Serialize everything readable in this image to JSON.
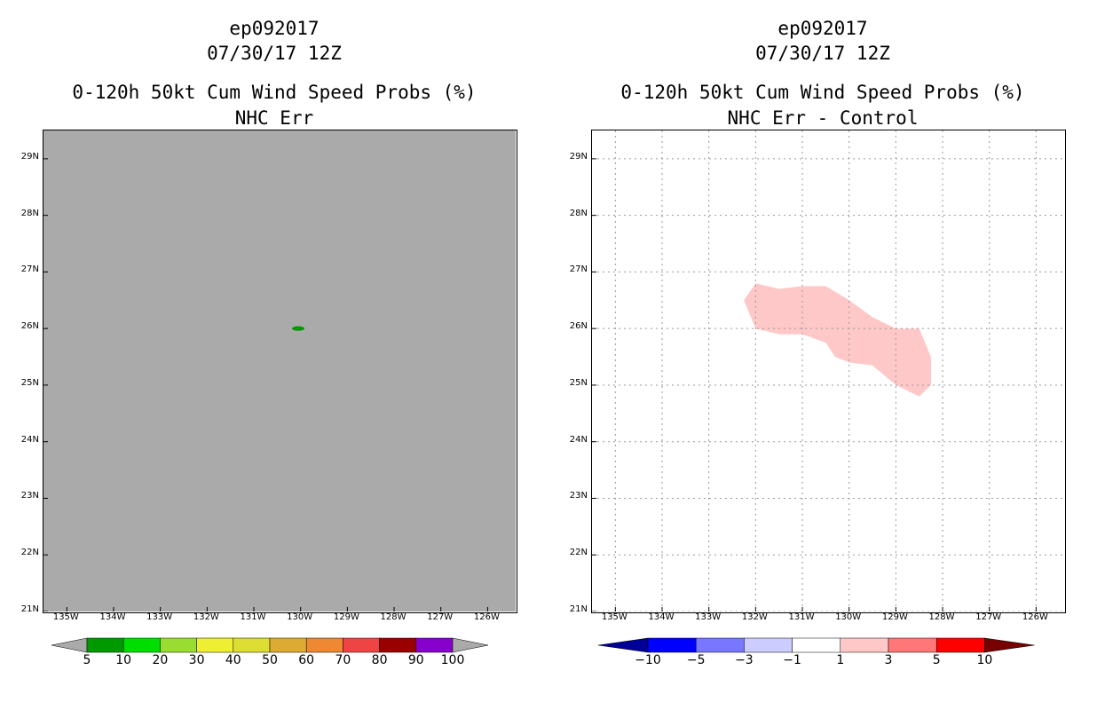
{
  "left": {
    "storm": "ep092017",
    "datetime": "07/30/17 12Z",
    "product": "0-120h 50kt Cum Wind Speed Probs (%)",
    "subtitle": "NHC Err",
    "background_color": "#aaaaaa",
    "feature": {
      "lon": -130.05,
      "lat": 26.0,
      "color": "#009900",
      "label": "5-10%"
    },
    "colorbar": {
      "labels": [
        "5",
        "10",
        "20",
        "30",
        "40",
        "50",
        "60",
        "70",
        "80",
        "90",
        "100"
      ],
      "colors": [
        "#009900",
        "#00dd00",
        "#99dd33",
        "#eeee33",
        "#dddd33",
        "#ddaa33",
        "#ee8833",
        "#ee4444",
        "#990000",
        "#8800cc"
      ],
      "end_color": "#aaaaaa"
    }
  },
  "right": {
    "storm": "ep092017",
    "datetime": "07/30/17 12Z",
    "product": "0-120h 50kt Cum Wind Speed Probs (%)",
    "subtitle": "NHC Err - Control",
    "background_color": "#ffffff",
    "region": {
      "color": "#ffc8c8",
      "label": "1 to 3",
      "polygon_lonlat": [
        [
          -132.25,
          26.5
        ],
        [
          -132.0,
          26.8
        ],
        [
          -131.5,
          26.7
        ],
        [
          -131.0,
          26.75
        ],
        [
          -130.5,
          26.75
        ],
        [
          -130.0,
          26.5
        ],
        [
          -129.5,
          26.2
        ],
        [
          -129.0,
          26.0
        ],
        [
          -128.5,
          26.0
        ],
        [
          -128.25,
          25.5
        ],
        [
          -128.25,
          25.0
        ],
        [
          -128.5,
          24.8
        ],
        [
          -129.0,
          25.0
        ],
        [
          -129.5,
          25.35
        ],
        [
          -130.0,
          25.4
        ],
        [
          -130.3,
          25.5
        ],
        [
          -130.5,
          25.75
        ],
        [
          -131.0,
          25.9
        ],
        [
          -131.5,
          25.9
        ],
        [
          -132.0,
          26.0
        ]
      ]
    },
    "colorbar": {
      "labels": [
        "-10",
        "-5",
        "-3",
        "-1",
        "1",
        "3",
        "5",
        "10"
      ],
      "colors": [
        "#0000dd",
        "#0000ff",
        "#7777ff",
        "#ccccff",
        "#ffffff",
        "#ffc8c8",
        "#ff7777",
        "#ff0000",
        "#880000"
      ],
      "start_color": "#000099",
      "end_color": "#770000"
    }
  },
  "axes": {
    "lat_labels": [
      "29N",
      "28N",
      "27N",
      "26N",
      "25N",
      "24N",
      "23N",
      "22N",
      "21N"
    ],
    "lat_values": [
      29,
      28,
      27,
      26,
      25,
      24,
      23,
      22,
      21
    ],
    "lon_labels": [
      "135W",
      "134W",
      "133W",
      "132W",
      "131W",
      "130W",
      "129W",
      "128W",
      "127W",
      "126W"
    ],
    "lon_values": [
      -135,
      -134,
      -133,
      -132,
      -131,
      -130,
      -129,
      -128,
      -127,
      -126
    ],
    "lon_range": [
      -135.5,
      -125.4
    ],
    "lat_range": [
      21,
      29.5
    ]
  }
}
